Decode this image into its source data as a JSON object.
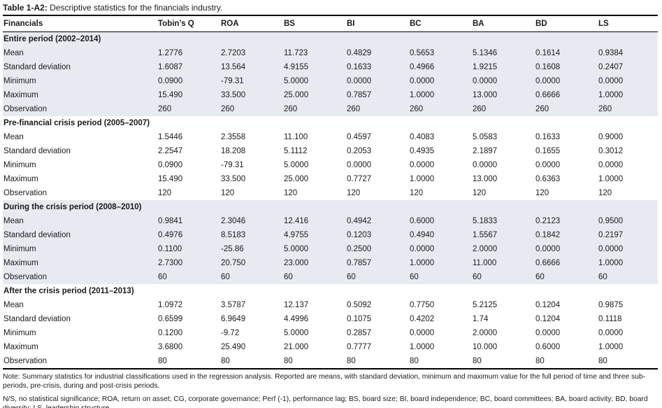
{
  "title": {
    "label": "Table 1-A2:",
    "text": "Descriptive statistics for the financials industry."
  },
  "table": {
    "columns": [
      "Financials",
      "Tobin’s Q",
      "ROA",
      "BS",
      "BI",
      "BC",
      "BA",
      "BD",
      "LS"
    ],
    "sections": [
      {
        "header": "Entire period (2002–2014)",
        "rows": [
          {
            "label": "Mean",
            "values": [
              "1.2776",
              "2.7203",
              "11.723",
              "0.4829",
              "0.5653",
              "5.1346",
              "0.1614",
              "0.9384"
            ]
          },
          {
            "label": "Standard deviation",
            "values": [
              "1.6087",
              "13.564",
              "4.9155",
              "0.1633",
              "0.4966",
              "1.9215",
              "0.1608",
              "0.2407"
            ]
          },
          {
            "label": "Minimum",
            "values": [
              "0.0900",
              "-79.31",
              "5.0000",
              "0.0000",
              "0.0000",
              "0.0000",
              "0.0000",
              "0.0000"
            ]
          },
          {
            "label": "Maximum",
            "values": [
              "15.490",
              "33.500",
              "25.000",
              "0.7857",
              "1.0000",
              "13.000",
              "0.6666",
              "1.0000"
            ]
          },
          {
            "label": "Observation",
            "values": [
              "260",
              "260",
              "260",
              "260",
              "260",
              "260",
              "260",
              "260"
            ]
          }
        ]
      },
      {
        "header": "Pre-financial crisis period (2005–2007)",
        "rows": [
          {
            "label": "Mean",
            "values": [
              "1.5446",
              "2.3558",
              "11.100",
              "0.4597",
              "0.4083",
              "5.0583",
              "0.1633",
              "0.9000"
            ]
          },
          {
            "label": "Standard deviation",
            "values": [
              "2.2547",
              "18.208",
              "5.1112",
              "0.2053",
              "0.4935",
              "2.1897",
              "0.1655",
              "0.3012"
            ]
          },
          {
            "label": "Minimum",
            "values": [
              "0.0900",
              "-79.31",
              "5.0000",
              "0.0000",
              "0.0000",
              "0.0000",
              "0.0000",
              "0.0000"
            ]
          },
          {
            "label": "Maximum",
            "values": [
              "15.490",
              "33.500",
              "25.000",
              "0.7727",
              "1.0000",
              "13.000",
              "0.6363",
              "1.0000"
            ]
          },
          {
            "label": "Observation",
            "values": [
              "120",
              "120",
              "120",
              "120",
              "120",
              "120",
              "120",
              "120"
            ]
          }
        ]
      },
      {
        "header": "During the crisis period (2008–2010)",
        "rows": [
          {
            "label": "Mean",
            "values": [
              "0.9841",
              "2.3046",
              "12.416",
              "0.4942",
              "0.6000",
              "5.1833",
              "0.2123",
              "0.9500"
            ]
          },
          {
            "label": "Standard deviation",
            "values": [
              "0.4976",
              "8.5183",
              "4.9755",
              "0.1203",
              "0.4940",
              "1.5567",
              "0.1842",
              "0.2197"
            ]
          },
          {
            "label": "Minimum",
            "values": [
              "0.1100",
              "-25.86",
              "5.0000",
              "0.2500",
              "0.0000",
              "2.0000",
              "0.0000",
              "0.0000"
            ]
          },
          {
            "label": "Maximum",
            "values": [
              "2.7300",
              "20.750",
              "23.000",
              "0.7857",
              "1.0000",
              "11.000",
              "0.6666",
              "1.0000"
            ]
          },
          {
            "label": "Observation",
            "values": [
              "60",
              "60",
              "60",
              "60",
              "60",
              "60",
              "60",
              "60"
            ]
          }
        ]
      },
      {
        "header": "After the crisis period (2011–2013)",
        "rows": [
          {
            "label": "Mean",
            "values": [
              "1.0972",
              "3.5787",
              "12.137",
              "0.5092",
              "0.7750",
              "5.2125",
              "0.1204",
              "0.9875"
            ]
          },
          {
            "label": "Standard deviation",
            "values": [
              "0.6599",
              "6.9649",
              "4.4996",
              "0.1075",
              "0.4202",
              "1.74",
              "0.1204",
              "0.1118"
            ]
          },
          {
            "label": "Minimum",
            "values": [
              "0.1200",
              "-9.72",
              "5.0000",
              "0.2857",
              "0.0000",
              "2.0000",
              "0.0000",
              "0.0000"
            ]
          },
          {
            "label": "Maximum",
            "values": [
              "3.6800",
              "25.490",
              "21.000",
              "0.7777",
              "1.0000",
              "10.000",
              "0.6000",
              "1.0000"
            ]
          },
          {
            "label": "Observation",
            "values": [
              "80",
              "80",
              "80",
              "80",
              "80",
              "80",
              "80",
              "80"
            ]
          }
        ]
      }
    ]
  },
  "notes": [
    "Note: Summary statistics for industrial classifications used in the regression analysis. Reported are means, with standard deviation, minimum and maximum value for the full period of time and three sub-periods, pre-crisis, during and post-crisis periods.",
    "N/S, no statistical significance; ROA, return on asset; CG, corporate governance; Perf (-1), performance lag; BS, board size; BI, board independence; BC, board committees; BA, board activity; BD, board diversity; LS, leadership structure."
  ],
  "colors": {
    "section_shaded_bg": "#e8eaf1",
    "rule_color": "#000000",
    "text_color": "#1a1a1a"
  }
}
